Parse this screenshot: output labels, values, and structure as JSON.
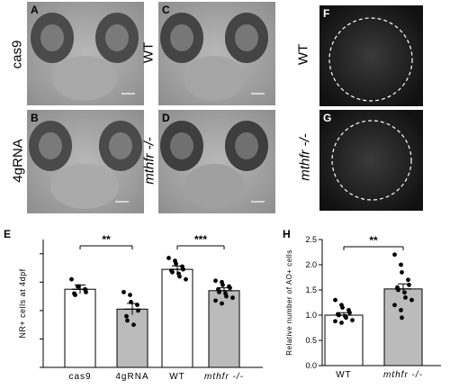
{
  "panels": {
    "A": {
      "letter": "A",
      "label": "cas9"
    },
    "B": {
      "letter": "B",
      "label": "4gRNA"
    },
    "C": {
      "letter": "C",
      "label": "WT"
    },
    "D": {
      "letter": "D",
      "label": "mthfr -/-"
    },
    "F": {
      "letter": "F",
      "label": "WT"
    },
    "G": {
      "letter": "G",
      "label": "mthfr -/-"
    }
  },
  "chart_data": [
    {
      "panel": "E",
      "type": "bar",
      "ylabel": "NR+ cells at 4dpf",
      "categories": [
        "cas9",
        "4gRNA",
        "WT",
        "mthfr -/-"
      ],
      "values": [
        27.5,
        20.5,
        34.5,
        27
      ],
      "errors": [
        1.5,
        2,
        1.2,
        1
      ],
      "bar_fill": [
        "#ffffff",
        "#bbbbbb",
        "#ffffff",
        "#bbbbbb"
      ],
      "ylim": [
        0,
        45
      ],
      "points": [
        [
          31,
          28.5,
          28.5,
          27.5,
          26.5,
          26,
          25.5
        ],
        [
          26.5,
          25.5,
          23,
          22,
          20,
          18,
          16.5,
          15
        ],
        [
          38.5,
          37.5,
          36.5,
          35.5,
          34.5,
          34,
          33.5,
          33,
          32,
          31
        ],
        [
          30.5,
          30,
          29,
          28.5,
          28,
          27.5,
          26.5,
          26,
          25,
          24.5,
          23.5,
          22.5
        ]
      ],
      "significance": [
        {
          "from": 0,
          "to": 1,
          "label": "**"
        },
        {
          "from": 2,
          "to": 3,
          "label": "***"
        }
      ]
    },
    {
      "panel": "H",
      "type": "bar",
      "ylabel": "Relative number of AO+ cells",
      "categories": [
        "WT",
        "mthfr -/-"
      ],
      "values": [
        1.0,
        1.52
      ],
      "errors": [
        0.05,
        0.1
      ],
      "bar_fill": [
        "#ffffff",
        "#bbbbbb"
      ],
      "ylim": [
        0,
        2.5
      ],
      "yticks": [
        "0.0",
        "0.5",
        "1.0",
        "1.5",
        "2.0",
        "2.5"
      ],
      "points": [
        [
          1.3,
          1.2,
          1.15,
          1.1,
          1.05,
          1.02,
          1.0,
          0.98,
          0.95,
          0.9,
          0.88,
          0.85
        ],
        [
          2.2,
          2.0,
          1.85,
          1.7,
          1.6,
          1.55,
          1.5,
          1.45,
          1.35,
          1.3,
          1.2,
          1.1,
          0.95
        ]
      ],
      "significance": [
        {
          "from": 0,
          "to": 1,
          "label": "**"
        }
      ]
    }
  ],
  "labels": {
    "E": "E",
    "H": "H"
  }
}
